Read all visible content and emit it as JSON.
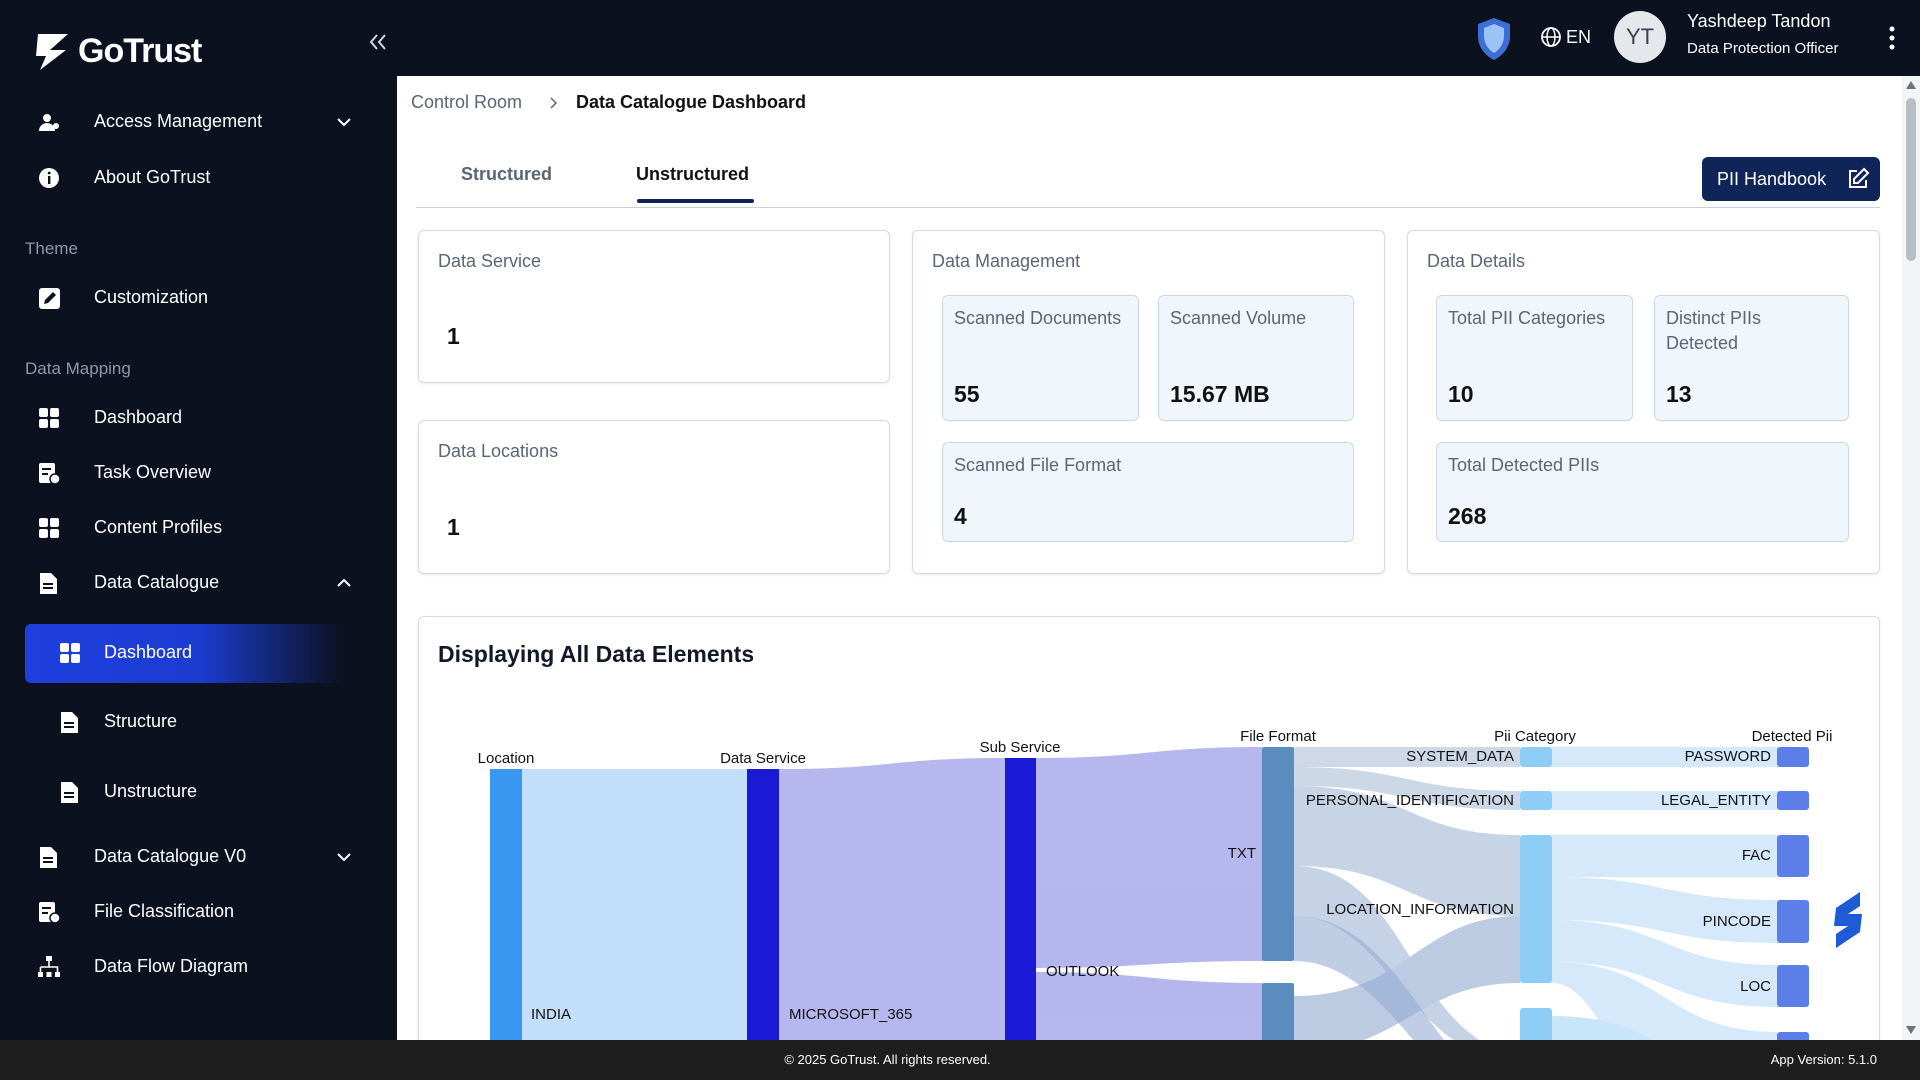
{
  "sidebar": {
    "brand": "GoTrust",
    "items": [
      "Access Management",
      "About GoTrust",
      "Theme",
      "Customization",
      "Data Mapping",
      "Dashboard",
      "Task Overview",
      "Content Profiles",
      "Data Catalogue",
      "Dashboard",
      "Structure",
      "Unstructure",
      "Data Catalogue V0",
      "File Classification",
      "Data Flow Diagram"
    ]
  },
  "header": {
    "language": "EN",
    "avatar": "YT",
    "user_name": "Yashdeep Tandon",
    "user_role": "Data Protection Officer"
  },
  "breadcrumb": [
    "Control Room",
    "Data Catalogue Dashboard"
  ],
  "tabs": [
    "Structured",
    "Unstructured"
  ],
  "button": "PII Handbook",
  "cards": {
    "data_service": {
      "label": "Data Service",
      "value": 1
    },
    "data_locations": {
      "label": "Data Locations",
      "value": 1
    },
    "data_management": {
      "title": "Data Management",
      "scanned_documents": {
        "label": "Scanned Documents",
        "value": 55
      },
      "scanned_volume": {
        "label": "Scanned Volume",
        "value": "15.67 MB"
      },
      "scanned_file_format": {
        "label": "Scanned File Format",
        "value": 4
      }
    },
    "data_details": {
      "title": "Data Details",
      "total_pii_categories": {
        "label": "Total PII Categories",
        "value": 10
      },
      "distinct_piis": {
        "label": "Distinct PIIs Detected",
        "value": 13
      },
      "total_detected_piis": {
        "label": "Total Detected PIIs",
        "value": 268
      }
    }
  },
  "sankey": {
    "title": "Displaying All Data Elements",
    "columns": [
      "Location",
      "Data Service",
      "Sub Service",
      "File Format",
      "Pii Category",
      "Detected Pii"
    ],
    "nodes": [
      "INDIA",
      "MICROSOFT_365",
      "OUTLOOK",
      "TXT",
      "SYSTEM_DATA",
      "PERSONAL_IDENTIFICATION",
      "LOCATION_INFORMATION",
      "PASSWORD",
      "LEGAL_ENTITY",
      "FAC",
      "PINCODE",
      "LOC"
    ]
  },
  "footer": {
    "copyright": "© 2025 GoTrust. All rights reserved.",
    "version": "App Version: 5.1.0"
  }
}
